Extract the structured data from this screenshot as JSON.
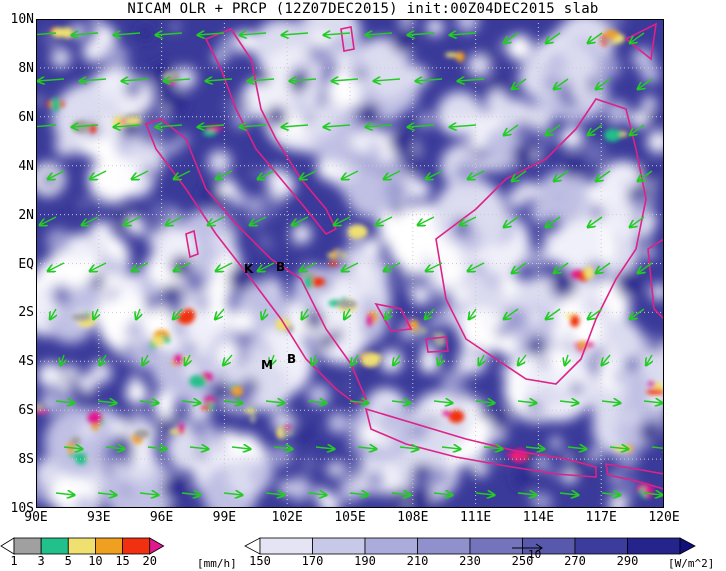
{
  "title": "NICAM OLR + PRCP (12Z07DEC2015) init:00Z04DEC2015 slab",
  "map": {
    "lat_labels": [
      "10N",
      "8N",
      "6N",
      "4N",
      "2N",
      "EQ",
      "2S",
      "4S",
      "6S",
      "8S",
      "10S"
    ],
    "lon_labels": [
      "90E",
      "93E",
      "96E",
      "99E",
      "102E",
      "105E",
      "108E",
      "111E",
      "114E",
      "117E",
      "120E"
    ],
    "extent": {
      "lon_min": 90,
      "lon_max": 120,
      "lat_min": -10,
      "lat_max": 10
    },
    "station_markers": [
      "K",
      "B",
      "M",
      "B"
    ],
    "coastline_color": "#dd2288",
    "vector_color": "#22cc22",
    "grid": "dotted"
  },
  "precip_colorbar": {
    "ticks": [
      "1",
      "3",
      "5",
      "10",
      "15",
      "20"
    ],
    "unit": "[mm/h]",
    "colors": [
      "#ffffff",
      "#a0a0a0",
      "#22c08a",
      "#f0e070",
      "#f0a020",
      "#f03010",
      "#e01890"
    ]
  },
  "olr_colorbar": {
    "ticks": [
      "150",
      "170",
      "190",
      "210",
      "230",
      "250",
      "270",
      "290"
    ],
    "unit": "[W/m^2]",
    "colors": [
      "#ffffff",
      "#e4e4f4",
      "#c8c8e8",
      "#acacdc",
      "#9090cc",
      "#7474bc",
      "#5858ac",
      "#3c3c9c",
      "#24248c",
      "#10107c"
    ]
  },
  "reference_vector": {
    "label": "10"
  }
}
